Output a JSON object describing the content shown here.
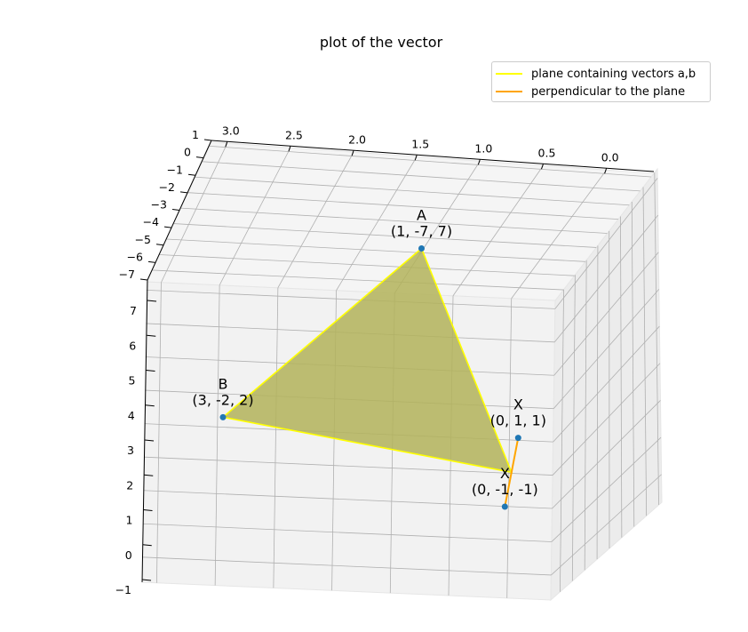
{
  "chart_data": {
    "type": "3d-plot",
    "title": "plot of the vector",
    "legend": [
      {
        "label": "plane containing vectors a,b",
        "color": "#ffff00"
      },
      {
        "label": "perpendicular to the plane",
        "color": "#ffa500"
      }
    ],
    "legend_placement": "top-right",
    "grid": true,
    "x_ticks": [
      "3.0",
      "2.5",
      "2.0",
      "1.5",
      "1.0",
      "0.5",
      "0.0"
    ],
    "y_ticks": [
      "1",
      "0",
      "−1",
      "−2",
      "−3",
      "−4",
      "−5",
      "−6",
      "−7"
    ],
    "z_ticks": [
      "7",
      "6",
      "5",
      "4",
      "3",
      "2",
      "1",
      "0",
      "−1"
    ],
    "xlim": [
      0,
      3
    ],
    "ylim": [
      -7,
      1
    ],
    "zlim": [
      -1,
      7
    ],
    "points": [
      {
        "label": "A",
        "coords": "(1, -7, 7)",
        "x": 1,
        "y": -7,
        "z": 7
      },
      {
        "label": "B",
        "coords": "(3, -2, 2)",
        "x": 3,
        "y": -2,
        "z": 2
      },
      {
        "label": "X",
        "coords": "(0, 1, 1)",
        "x": 0,
        "y": 1,
        "z": 1
      },
      {
        "label": "X",
        "coords": "(0, -1, -1)",
        "x": 0,
        "y": -1,
        "z": -1
      }
    ],
    "plane": {
      "vertices": [
        "A",
        "B",
        "origin"
      ],
      "fill_color": "#b3b35a",
      "edge_color": "#ffff00"
    },
    "perpendicular": {
      "from": [
        0,
        1,
        1
      ],
      "to": [
        0,
        -1,
        -1
      ],
      "color": "#ffa500"
    },
    "marker_color": "#1f77b4"
  }
}
